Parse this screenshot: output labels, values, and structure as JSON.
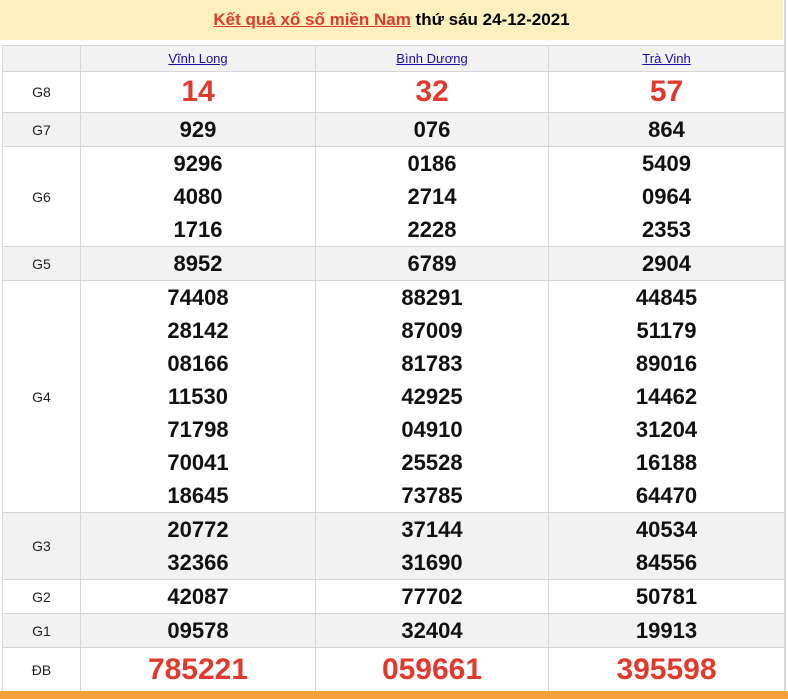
{
  "title": {
    "link": "Kết quả xổ số miền Nam",
    "rest": " thứ sáu 24-12-2021"
  },
  "provinces": [
    "Vĩnh Long",
    "Bình Dương",
    "Trà Vinh"
  ],
  "colors": {
    "accent": "#e03a2f",
    "header_bg": "#fdf0be",
    "footer": "#f4a03c"
  },
  "rows": [
    {
      "label": "G8",
      "red": true,
      "values": [
        [
          "14"
        ],
        [
          "32"
        ],
        [
          "57"
        ]
      ]
    },
    {
      "label": "G7",
      "values": [
        [
          "929"
        ],
        [
          "076"
        ],
        [
          "864"
        ]
      ]
    },
    {
      "label": "G6",
      "values": [
        [
          "9296",
          "4080",
          "1716"
        ],
        [
          "0186",
          "2714",
          "2228"
        ],
        [
          "5409",
          "0964",
          "2353"
        ]
      ]
    },
    {
      "label": "G5",
      "values": [
        [
          "8952"
        ],
        [
          "6789"
        ],
        [
          "2904"
        ]
      ]
    },
    {
      "label": "G4",
      "values": [
        [
          "74408",
          "28142",
          "08166",
          "11530",
          "71798",
          "70041",
          "18645"
        ],
        [
          "88291",
          "87009",
          "81783",
          "42925",
          "04910",
          "25528",
          "73785"
        ],
        [
          "44845",
          "51179",
          "89016",
          "14462",
          "31204",
          "16188",
          "64470"
        ]
      ]
    },
    {
      "label": "G3",
      "values": [
        [
          "20772",
          "32366"
        ],
        [
          "37144",
          "31690"
        ],
        [
          "40534",
          "84556"
        ]
      ]
    },
    {
      "label": "G2",
      "values": [
        [
          "42087"
        ],
        [
          "77702"
        ],
        [
          "50781"
        ]
      ]
    },
    {
      "label": "G1",
      "values": [
        [
          "09578"
        ],
        [
          "32404"
        ],
        [
          "19913"
        ]
      ]
    },
    {
      "label": "ĐB",
      "red": true,
      "values": [
        [
          "785221"
        ],
        [
          "059661"
        ],
        [
          "395598"
        ]
      ]
    }
  ]
}
